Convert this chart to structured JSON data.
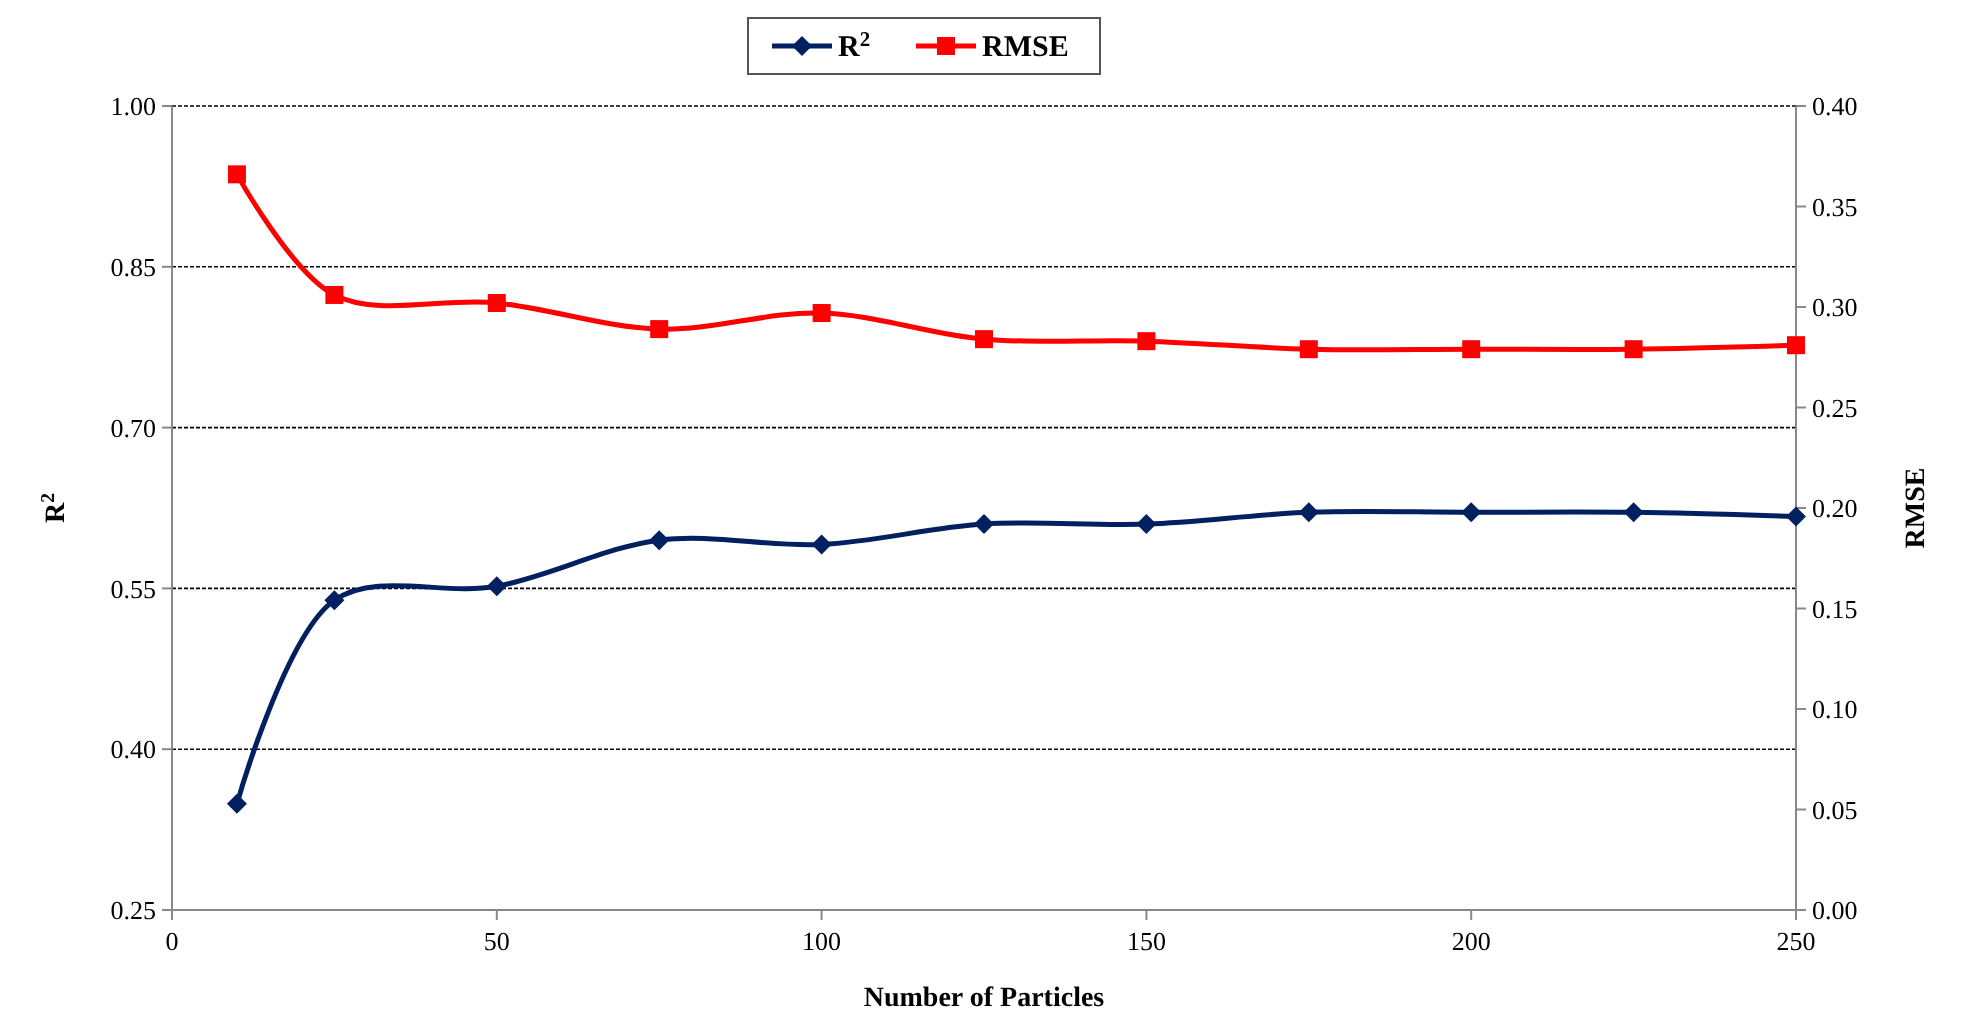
{
  "chart_data": {
    "type": "line",
    "xlabel": "Number of Particles",
    "ylabel": "R$^{2}$",
    "y2label": "RMSE",
    "x": [
      10,
      25,
      50,
      75,
      100,
      125,
      150,
      175,
      200,
      225,
      250
    ],
    "series": [
      {
        "name": "R$^{2}$",
        "color": "#002060",
        "marker": "diamond",
        "values": [
          0.349,
          0.539,
          0.552,
          0.595,
          0.591,
          0.61,
          0.61,
          0.621,
          0.621,
          0.621,
          0.617
        ]
      },
      {
        "name": "RMSE",
        "color": "#ff0000",
        "marker": "square",
        "axis": "y2",
        "values": [
          0.366,
          0.306,
          0.302,
          0.289,
          0.297,
          0.284,
          0.283,
          0.279,
          0.279,
          0.279,
          0.281
        ]
      }
    ],
    "xlim": [
      0,
      250
    ],
    "xticks": [
      0,
      50,
      100,
      150,
      200,
      250
    ],
    "ylim": [
      0.25,
      1.0
    ],
    "yticks": [
      {
        "value": 0.25,
        "label": "0.25"
      },
      {
        "value": 0.4,
        "label": "0.40"
      },
      {
        "value": 0.55,
        "label": "0.55"
      },
      {
        "value": 0.7,
        "label": "0.70"
      },
      {
        "value": 0.85,
        "label": "0.85"
      },
      {
        "value": 1.0,
        "label": "1.00"
      }
    ],
    "y2lim": [
      0,
      0.4
    ],
    "y2ticks": [
      {
        "value": 0,
        "label": "0.00"
      },
      {
        "value": 0.05,
        "label": "0.05"
      },
      {
        "value": 0.1,
        "label": "0.10"
      },
      {
        "value": 0.15,
        "label": "0.15"
      },
      {
        "value": 0.2,
        "label": "0.20"
      },
      {
        "value": 0.25,
        "label": "0.25"
      },
      {
        "value": 0.3,
        "label": "0.30"
      },
      {
        "value": 0.35,
        "label": "0.35"
      },
      {
        "value": 0.4,
        "label": "0.40"
      }
    ],
    "grid": "y",
    "legend": "top",
    "line_style": "solid"
  }
}
